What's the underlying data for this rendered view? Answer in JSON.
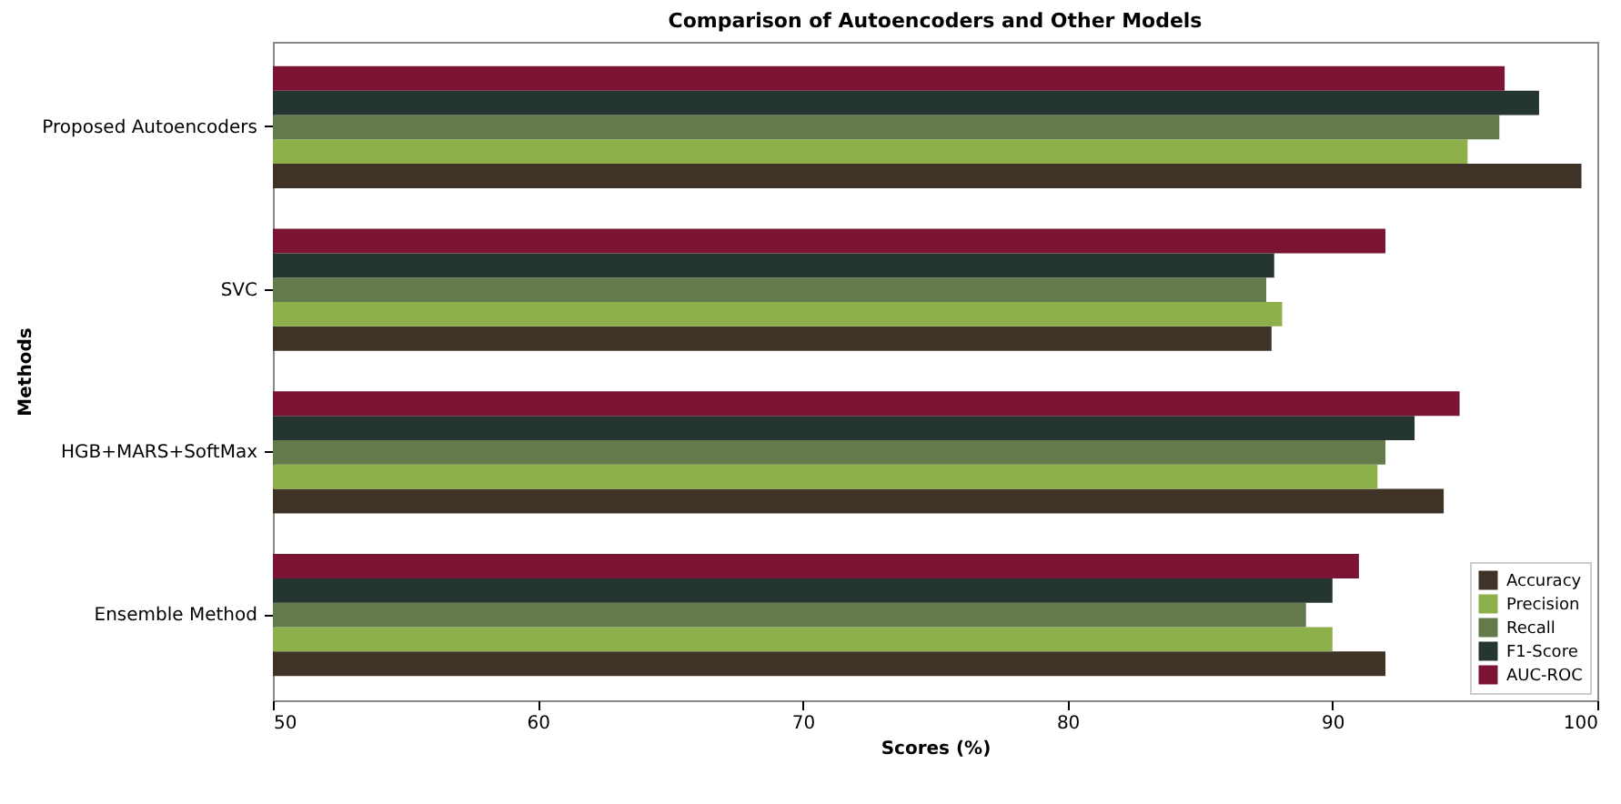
{
  "chart_data": {
    "type": "bar",
    "orientation": "horizontal",
    "title": "Comparison of Autoencoders and Other Models",
    "xlabel": "Scores (%)",
    "ylabel": "Methods",
    "categories": [
      "Proposed Autoencoders",
      "SVC",
      "HGB+MARS+SoftMax",
      "Ensemble Method"
    ],
    "series": [
      {
        "name": "Accuracy",
        "color": "#3f3226",
        "values": [
          99.4,
          87.7,
          94.2,
          92.0
        ]
      },
      {
        "name": "Precision",
        "color": "#8db04a",
        "values": [
          95.1,
          88.1,
          91.7,
          90.0
        ]
      },
      {
        "name": "Recall",
        "color": "#647a4a",
        "values": [
          96.3,
          87.5,
          92.0,
          89.0
        ]
      },
      {
        "name": "F1-Score",
        "color": "#253530",
        "values": [
          97.8,
          87.8,
          93.1,
          90.0
        ]
      },
      {
        "name": "AUC-ROC",
        "color": "#7a1432",
        "values": [
          96.5,
          92.0,
          94.8,
          91.0
        ]
      }
    ],
    "xlim": [
      50,
      100
    ],
    "xticks": [
      50,
      60,
      70,
      80,
      90,
      100
    ],
    "grid": false,
    "legend": "bottom right"
  }
}
